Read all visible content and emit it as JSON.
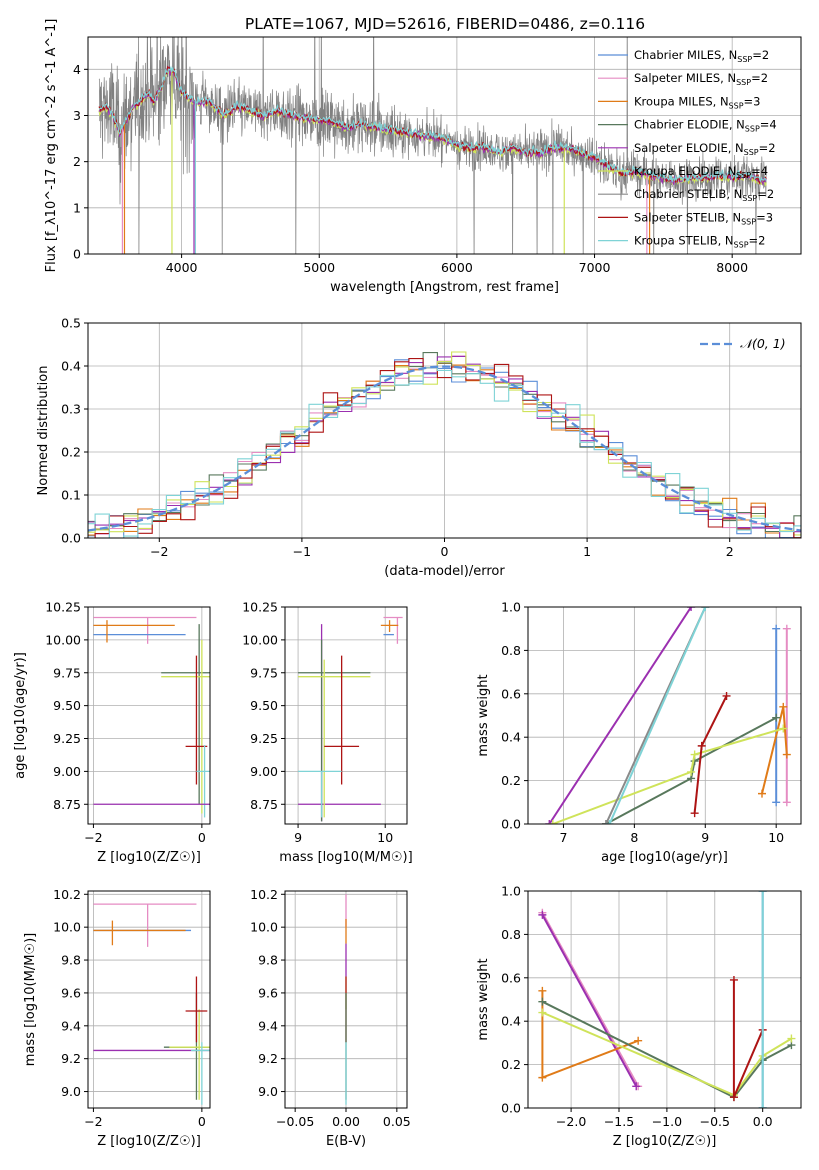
{
  "title": "PLATE=1067, MJD=52616, FIBERID=0486, z=0.116",
  "colors": {
    "Chabrier MILES": "#5b8ed8",
    "Salpeter MILES": "#e58cc3",
    "Kroupa MILES": "#e07b18",
    "Chabrier ELODIE": "#58785c",
    "Salpeter ELODIE": "#9b30b0",
    "Kroupa ELODIE": "#cfe35a",
    "Chabrier STELIB": "#8a8a8a",
    "Salpeter STELIB": "#ad1414",
    "Kroupa STELIB": "#7fd3d6",
    "data": "#808080",
    "normal": "#5b8ed8"
  },
  "chart_data": [
    {
      "id": "spectrum",
      "type": "line",
      "xlabel": "wavelength [Angstrom, rest frame]",
      "ylabel": "Flux [f_λ10^-17 erg cm^-2 s^-1 A^-1]",
      "xlim": [
        3320,
        8500
      ],
      "ylim": [
        0,
        4.7
      ],
      "xticks": [
        "4000",
        "5000",
        "6000",
        "7000",
        "8000"
      ],
      "yticks": [
        "0",
        "1",
        "2",
        "3",
        "4"
      ],
      "legend_position": "top-right",
      "legend": [
        {
          "name": "Chabrier MILES",
          "n": "2"
        },
        {
          "name": "Salpeter MILES",
          "n": "2"
        },
        {
          "name": "Kroupa MILES",
          "n": "3"
        },
        {
          "name": "Chabrier ELODIE",
          "n": "4"
        },
        {
          "name": "Salpeter ELODIE",
          "n": "2"
        },
        {
          "name": "Kroupa ELODIE",
          "n": "4"
        },
        {
          "name": "Chabrier STELIB",
          "n": "2"
        },
        {
          "name": "Salpeter STELIB",
          "n": "3"
        },
        {
          "name": "Kroupa STELIB",
          "n": "2"
        }
      ],
      "model_continuum": [
        [
          3400,
          3.1
        ],
        [
          3450,
          3.2
        ],
        [
          3500,
          3.0
        ],
        [
          3550,
          2.6
        ],
        [
          3600,
          2.9
        ],
        [
          3650,
          3.2
        ],
        [
          3700,
          3.3
        ],
        [
          3750,
          3.5
        ],
        [
          3800,
          3.3
        ],
        [
          3850,
          3.6
        ],
        [
          3900,
          4.0
        ],
        [
          3950,
          3.9
        ],
        [
          4000,
          3.5
        ],
        [
          4050,
          3.4
        ],
        [
          4100,
          3.3
        ],
        [
          4200,
          3.3
        ],
        [
          4300,
          3.0
        ],
        [
          4400,
          3.2
        ],
        [
          4500,
          3.1
        ],
        [
          4600,
          3.0
        ],
        [
          4700,
          3.1
        ],
        [
          4800,
          3.0
        ],
        [
          4900,
          2.95
        ],
        [
          5000,
          2.9
        ],
        [
          5100,
          2.85
        ],
        [
          5200,
          2.75
        ],
        [
          5300,
          2.8
        ],
        [
          5400,
          2.75
        ],
        [
          5500,
          2.7
        ],
        [
          5600,
          2.65
        ],
        [
          5700,
          2.6
        ],
        [
          5800,
          2.55
        ],
        [
          5900,
          2.5
        ],
        [
          6000,
          2.35
        ],
        [
          6100,
          2.3
        ],
        [
          6200,
          2.3
        ],
        [
          6300,
          2.2
        ],
        [
          6400,
          2.3
        ],
        [
          6500,
          2.2
        ],
        [
          6600,
          2.2
        ],
        [
          6700,
          2.3
        ],
        [
          6800,
          2.3
        ],
        [
          6900,
          2.2
        ],
        [
          7000,
          2.1
        ],
        [
          7100,
          1.9
        ],
        [
          7200,
          1.75
        ],
        [
          7300,
          1.8
        ],
        [
          7400,
          1.7
        ],
        [
          7500,
          1.65
        ],
        [
          7600,
          1.6
        ],
        [
          7700,
          1.65
        ],
        [
          7800,
          1.65
        ],
        [
          7900,
          1.7
        ],
        [
          8000,
          1.65
        ],
        [
          8100,
          1.7
        ],
        [
          8200,
          1.6
        ],
        [
          8250,
          1.6
        ]
      ]
    },
    {
      "id": "residuals",
      "type": "line",
      "xlabel": "(data-model)/error",
      "ylabel": "Normed distribution",
      "xlim": [
        -2.5,
        2.5
      ],
      "ylim": [
        0,
        0.5
      ],
      "xticks": [
        "−2",
        "−1",
        "0",
        "1",
        "2"
      ],
      "yticks": [
        "0.0",
        "0.1",
        "0.2",
        "0.3",
        "0.4",
        "0.5"
      ],
      "legend": [
        "𝒩(0, 1)"
      ],
      "legend_position": "top-right",
      "bin_width": 0.1
    },
    {
      "id": "age_vs_Z",
      "type": "scatter",
      "xlabel": "Z [log10(Z/Z☉)]",
      "ylabel": "age [log10(age/yr)]",
      "xlim": [
        -2.1,
        0.15
      ],
      "ylim": [
        8.6,
        10.25
      ],
      "xticks": [
        "−2",
        "0"
      ],
      "yticks": [
        "8.75",
        "9.00",
        "9.25",
        "9.50",
        "9.75",
        "10.00",
        "10.25"
      ],
      "points": [
        {
          "s": "Salpeter MILES",
          "x": -1.0,
          "y": 10.17,
          "xe": [
            -2.0,
            -0.1
          ],
          "ye": [
            9.97,
            10.17
          ]
        },
        {
          "s": "Chabrier MILES",
          "x": -1.0,
          "y": 10.04,
          "xe": [
            -2.0,
            -0.3
          ],
          "ye": [
            10.04,
            10.04
          ]
        },
        {
          "s": "Kroupa MILES",
          "x": -1.75,
          "y": 10.11,
          "xe": [
            -2.0,
            -0.5
          ],
          "ye": [
            9.98,
            10.15
          ]
        },
        {
          "s": "Chabrier ELODIE",
          "x": -0.05,
          "y": 9.75,
          "xe": [
            -0.75,
            0.25
          ],
          "ye": [
            8.75,
            10.12
          ]
        },
        {
          "s": "Kroupa ELODIE",
          "x": 0.0,
          "y": 9.72,
          "xe": [
            -0.75,
            0.25
          ],
          "ye": [
            8.68,
            10.0
          ]
        },
        {
          "s": "Salpeter STELIB",
          "x": -0.1,
          "y": 9.19,
          "xe": [
            -0.3,
            0.1
          ],
          "ye": [
            8.9,
            9.88
          ]
        },
        {
          "s": "Kroupa STELIB",
          "x": 0.05,
          "y": 9.0,
          "xe": [
            -0.1,
            0.3
          ],
          "ye": [
            8.65,
            9.2
          ]
        },
        {
          "s": "Salpeter ELODIE",
          "x": -1.0,
          "y": 8.75,
          "xe": [
            -2.0,
            0.2
          ],
          "ye": [
            8.75,
            8.75
          ]
        }
      ]
    },
    {
      "id": "age_vs_mass",
      "type": "scatter",
      "xlabel": "mass [log10(M/M☉)]",
      "ylabel": "",
      "xlim": [
        8.85,
        10.25
      ],
      "ylim": [
        8.6,
        10.25
      ],
      "xticks": [
        "9",
        "10"
      ],
      "yticks": [
        "8.75",
        "9.00",
        "9.25",
        "9.50",
        "9.75",
        "10.00",
        "10.25"
      ],
      "points": [
        {
          "s": "Salpeter MILES",
          "x": 10.14,
          "y": 10.17,
          "xe": [
            9.98,
            10.2
          ],
          "ye": [
            9.97,
            10.17
          ]
        },
        {
          "s": "Chabrier MILES",
          "x": 10.0,
          "y": 10.04,
          "xe": [
            9.98,
            10.1
          ],
          "ye": [
            10.04,
            10.04
          ]
        },
        {
          "s": "Kroupa MILES",
          "x": 10.05,
          "y": 10.11,
          "xe": [
            9.95,
            10.15
          ],
          "ye": [
            10.06,
            10.15
          ]
        },
        {
          "s": "Salpeter ELODIE",
          "x": 9.27,
          "y": 8.75,
          "xe": [
            9.0,
            9.95
          ],
          "ye": [
            8.62,
            10.12
          ]
        },
        {
          "s": "Chabrier ELODIE",
          "x": 9.27,
          "y": 9.75,
          "xe": [
            9.0,
            9.83
          ],
          "ye": [
            8.62,
            10.0
          ]
        },
        {
          "s": "Kroupa ELODIE",
          "x": 9.3,
          "y": 9.72,
          "xe": [
            9.0,
            9.83
          ],
          "ye": [
            8.65,
            9.85
          ]
        },
        {
          "s": "Salpeter STELIB",
          "x": 9.5,
          "y": 9.19,
          "xe": [
            9.3,
            9.7
          ],
          "ye": [
            8.9,
            9.88
          ]
        },
        {
          "s": "Kroupa STELIB",
          "x": 9.27,
          "y": 9.0,
          "xe": [
            9.0,
            9.5
          ],
          "ye": [
            8.65,
            9.0
          ]
        }
      ]
    },
    {
      "id": "weight_vs_age",
      "type": "line",
      "xlabel": "age [log10(age/yr)]",
      "ylabel": "mass weight",
      "xlim": [
        6.5,
        10.35
      ],
      "ylim": [
        0.0,
        1.0
      ],
      "xticks": [
        "7",
        "8",
        "9",
        "10"
      ],
      "yticks": [
        "0.0",
        "0.2",
        "0.4",
        "0.6",
        "0.8",
        "1.0"
      ],
      "series": [
        {
          "s": "Chabrier MILES",
          "pts": [
            [
              10.0,
              0.9
            ],
            [
              10.0,
              0.1
            ]
          ]
        },
        {
          "s": "Salpeter MILES",
          "pts": [
            [
              10.15,
              0.9
            ],
            [
              10.15,
              0.1
            ]
          ]
        },
        {
          "s": "Kroupa MILES",
          "pts": [
            [
              9.8,
              0.14
            ],
            [
              10.1,
              0.54
            ],
            [
              10.15,
              0.32
            ]
          ]
        },
        {
          "s": "Chabrier ELODIE",
          "pts": [
            [
              7.6,
              0.0
            ],
            [
              8.8,
              0.21
            ],
            [
              8.85,
              0.29
            ],
            [
              10.0,
              0.49
            ]
          ]
        },
        {
          "s": "Salpeter ELODIE",
          "pts": [
            [
              6.8,
              0.0
            ],
            [
              8.8,
              1.0
            ]
          ]
        },
        {
          "s": "Kroupa ELODIE",
          "pts": [
            [
              6.85,
              0.0
            ],
            [
              8.8,
              0.24
            ],
            [
              8.85,
              0.32
            ],
            [
              10.1,
              0.44
            ]
          ]
        },
        {
          "s": "Chabrier STELIB",
          "pts": [
            [
              7.6,
              0.0
            ],
            [
              9.0,
              1.0
            ]
          ]
        },
        {
          "s": "Salpeter STELIB",
          "pts": [
            [
              8.85,
              0.05
            ],
            [
              8.95,
              0.36
            ],
            [
              9.3,
              0.59
            ]
          ]
        },
        {
          "s": "Kroupa STELIB",
          "pts": [
            [
              7.65,
              0.0
            ],
            [
              9.0,
              1.0
            ]
          ]
        }
      ]
    },
    {
      "id": "mass_vs_Z",
      "type": "scatter",
      "xlabel": "Z [log10(Z/Z☉)]",
      "ylabel": "mass [log10(M/M☉)]",
      "xlim": [
        -2.1,
        0.15
      ],
      "ylim": [
        8.9,
        10.22
      ],
      "xticks": [
        "−2",
        "0"
      ],
      "yticks": [
        "9.0",
        "9.2",
        "9.4",
        "9.6",
        "9.8",
        "10.0",
        "10.2"
      ],
      "points": [
        {
          "s": "Salpeter MILES",
          "x": -1.0,
          "y": 10.14,
          "xe": [
            -2.0,
            -0.1
          ],
          "ye": [
            9.88,
            10.14
          ]
        },
        {
          "s": "Chabrier MILES",
          "x": -1.0,
          "y": 9.98,
          "xe": [
            -2.0,
            -0.2
          ],
          "ye": [
            9.98,
            9.98
          ]
        },
        {
          "s": "Kroupa MILES",
          "x": -1.65,
          "y": 9.98,
          "xe": [
            -2.0,
            -0.3
          ],
          "ye": [
            9.89,
            10.04
          ]
        },
        {
          "s": "Salpeter ELODIE",
          "x": -1.0,
          "y": 9.25,
          "xe": [
            -2.0,
            0.2
          ],
          "ye": [
            9.25,
            9.25
          ]
        },
        {
          "s": "Chabrier ELODIE",
          "x": -0.1,
          "y": 9.27,
          "xe": [
            -0.7,
            0.25
          ],
          "ye": [
            8.95,
            9.6
          ]
        },
        {
          "s": "Kroupa ELODIE",
          "x": -0.05,
          "y": 9.27,
          "xe": [
            -0.6,
            0.25
          ],
          "ye": [
            8.95,
            9.5
          ]
        },
        {
          "s": "Salpeter STELIB",
          "x": -0.1,
          "y": 9.49,
          "xe": [
            -0.3,
            0.1
          ],
          "ye": [
            9.3,
            9.7
          ]
        },
        {
          "s": "Kroupa STELIB",
          "x": 0.0,
          "y": 9.25,
          "xe": [
            -0.2,
            0.3
          ],
          "ye": [
            8.92,
            9.3
          ]
        }
      ]
    },
    {
      "id": "mass_vs_ebv",
      "type": "scatter",
      "xlabel": "E(B-V)",
      "ylabel": "",
      "xlim": [
        -0.06,
        0.06
      ],
      "ylim": [
        8.9,
        10.22
      ],
      "xticks": [
        "−0.05",
        "0.00",
        "0.05"
      ],
      "yticks": [
        "9.0",
        "9.2",
        "9.4",
        "9.6",
        "9.8",
        "10.0",
        "10.2"
      ],
      "points": [
        {
          "s": "Salpeter MILES",
          "x": 0.0,
          "y": 10.14,
          "xe": [
            0,
            0
          ],
          "ye": [
            10.0,
            10.2
          ]
        },
        {
          "s": "Kroupa MILES",
          "x": 0.0,
          "y": 9.98,
          "xe": [
            0,
            0
          ],
          "ye": [
            9.9,
            10.05
          ]
        },
        {
          "s": "Salpeter ELODIE",
          "x": 0.0,
          "y": 9.8,
          "xe": [
            0,
            0
          ],
          "ye": [
            9.7,
            9.9
          ]
        },
        {
          "s": "Kroupa ELODIE",
          "x": 0.0,
          "y": 9.6,
          "xe": [
            0,
            0
          ],
          "ye": [
            9.5,
            9.7
          ]
        },
        {
          "s": "Salpeter STELIB",
          "x": 0.0,
          "y": 9.49,
          "xe": [
            0,
            0
          ],
          "ye": [
            9.3,
            9.7
          ]
        },
        {
          "s": "Chabrier ELODIE",
          "x": 0.0,
          "y": 9.27,
          "xe": [
            0,
            0
          ],
          "ye": [
            8.95,
            9.6
          ]
        },
        {
          "s": "Kroupa STELIB",
          "x": 0.0,
          "y": 9.0,
          "xe": [
            0,
            0
          ],
          "ye": [
            8.92,
            9.3
          ]
        }
      ]
    },
    {
      "id": "weight_vs_Z",
      "type": "line",
      "xlabel": "Z [log10(Z/Z☉)]",
      "ylabel": "mass weight",
      "xlim": [
        -2.45,
        0.4
      ],
      "ylim": [
        0.0,
        1.0
      ],
      "xticks": [
        "−2.0",
        "−1.5",
        "−1.0",
        "−0.5",
        "0.0"
      ],
      "yticks": [
        "0.0",
        "0.2",
        "0.4",
        "0.6",
        "0.8",
        "1.0"
      ],
      "series": [
        {
          "s": "Salpeter MILES",
          "pts": [
            [
              -2.3,
              0.9
            ],
            [
              -1.3,
              0.1
            ]
          ]
        },
        {
          "s": "Salpeter ELODIE",
          "pts": [
            [
              -2.3,
              0.89
            ],
            [
              -1.32,
              0.1
            ]
          ]
        },
        {
          "s": "Kroupa MILES",
          "pts": [
            [
              -2.3,
              0.54
            ],
            [
              -2.3,
              0.14
            ],
            [
              -1.3,
              0.31
            ]
          ]
        },
        {
          "s": "Chabrier ELODIE",
          "pts": [
            [
              -2.3,
              0.49
            ],
            [
              -0.3,
              0.05
            ],
            [
              0.0,
              0.22
            ],
            [
              0.3,
              0.29
            ]
          ]
        },
        {
          "s": "Kroupa ELODIE",
          "pts": [
            [
              -2.3,
              0.44
            ],
            [
              -0.3,
              0.06
            ],
            [
              0.0,
              0.24
            ],
            [
              0.3,
              0.32
            ]
          ]
        },
        {
          "s": "Salpeter STELIB",
          "pts": [
            [
              -0.3,
              0.59
            ],
            [
              -0.3,
              0.05
            ],
            [
              0.0,
              0.36
            ]
          ]
        },
        {
          "s": "Chabrier MILES",
          "pts": [
            [
              0.0,
              1.0
            ],
            [
              0.0,
              0.0
            ]
          ]
        },
        {
          "s": "Kroupa STELIB",
          "pts": [
            [
              0.0,
              1.0
            ],
            [
              0.0,
              0.0
            ]
          ]
        }
      ]
    }
  ]
}
